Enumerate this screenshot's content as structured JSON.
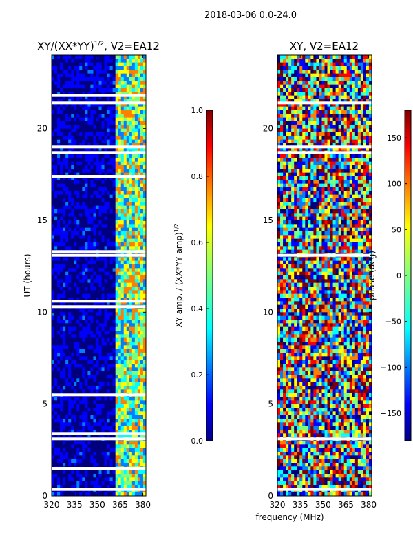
{
  "suptitle": "2018-03-06 0.0-24.0",
  "xlabel_shared": "frequency (MHz)",
  "colors": {
    "jet": [
      "#00007f",
      "#0000ff",
      "#007fff",
      "#00ffff",
      "#7fff7f",
      "#ffff00",
      "#ff7f00",
      "#ff0000",
      "#7f0000"
    ],
    "flag_white": "#ffffff",
    "axis": "#000000"
  },
  "chart_data": [
    {
      "type": "heatmap",
      "title_main": "XY/(XX*YY)",
      "title_exp": "1/2",
      "title_suffix": ", V2=EA12",
      "ylabel": "UT (hours)",
      "xlim": [
        320,
        382
      ],
      "ylim": [
        0,
        24
      ],
      "xticks": [
        320,
        335,
        350,
        365,
        380
      ],
      "yticks": [
        0,
        5,
        10,
        15,
        20
      ],
      "flag_bands_ut": [
        0.35,
        1.5,
        3.1,
        3.4,
        5.5,
        10.3,
        10.6,
        13.1,
        13.3,
        17.4,
        18.7,
        19.0,
        21.4,
        21.8
      ],
      "colorbar": {
        "label_main": "XY amp. / (XX*YY amp)",
        "label_exp": "1/2",
        "range": [
          0.0,
          1.0
        ],
        "ticks": [
          "0.0",
          "0.2",
          "0.4",
          "0.6",
          "0.8",
          "1.0"
        ],
        "tick_values": [
          0.0,
          0.2,
          0.4,
          0.6,
          0.8,
          1.0
        ]
      }
    },
    {
      "type": "heatmap",
      "title_main": "XY, V2=EA12",
      "xlim": [
        320,
        382
      ],
      "ylim": [
        0,
        24
      ],
      "xticks": [
        320,
        335,
        350,
        365,
        380
      ],
      "yticks": [
        0,
        5,
        10,
        15,
        20
      ],
      "flag_bands_ut": [
        0.35,
        3.1,
        13.1,
        18.7,
        19.0,
        21.4
      ],
      "colorbar": {
        "label_main": "phase (deg)",
        "range": [
          -180,
          180
        ],
        "ticks": [
          "−150",
          "−100",
          "−50",
          "0",
          "50",
          "100",
          "150"
        ],
        "tick_values": [
          -150,
          -100,
          -50,
          0,
          50,
          100,
          150
        ]
      }
    }
  ]
}
